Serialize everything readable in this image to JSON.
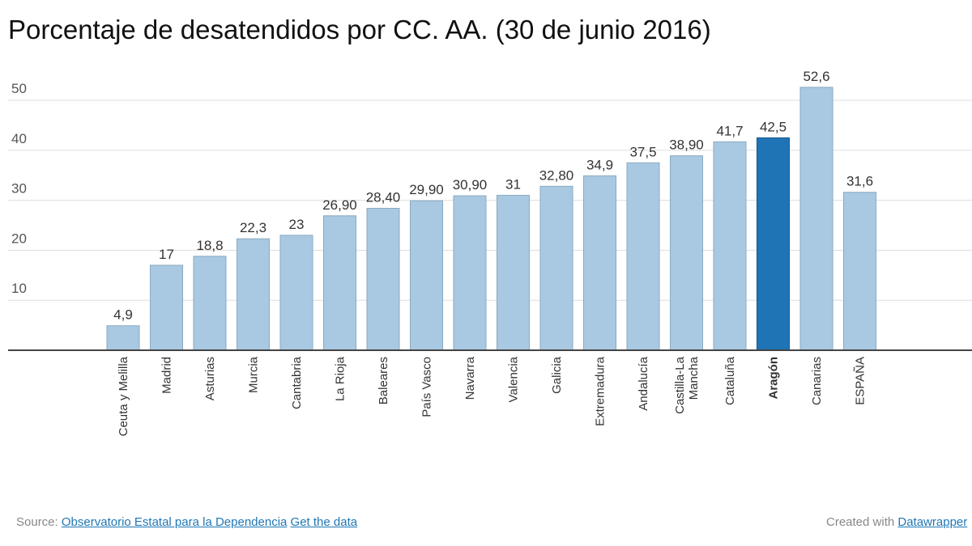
{
  "chart_data": {
    "type": "bar",
    "title": "Porcentaje de desatendidos por CC. AA. (30 de junio 2016)",
    "xlabel": "",
    "ylabel": "",
    "ylim": [
      0,
      50
    ],
    "yticks": [
      10,
      20,
      30,
      40,
      50
    ],
    "grid": true,
    "categories": [
      "Ceuta y Melilla",
      "Madrid",
      "Asturias",
      "Murcia",
      "Cantabria",
      "La Rioja",
      "Baleares",
      "País Vasco",
      "Navarra",
      "Valencia",
      "Galicia",
      "Extremadura",
      "Andalucía",
      "Castilla-La Mancha",
      "Cataluña",
      "Aragón",
      "Canarias",
      "ESPAÑA"
    ],
    "values": [
      4.9,
      17,
      18.8,
      22.3,
      23,
      26.9,
      28.4,
      29.9,
      30.9,
      31,
      32.8,
      34.9,
      37.5,
      38.9,
      41.7,
      42.5,
      52.6,
      31.6
    ],
    "value_labels": [
      "4,9",
      "17",
      "18,8",
      "22,3",
      "23",
      "26,90",
      "28,40",
      "29,90",
      "30,90",
      "31",
      "32,80",
      "34,9",
      "37,5",
      "38,90",
      "41,7",
      "42,5",
      "52,6",
      "31,6"
    ],
    "highlight": "Aragón",
    "colors": {
      "default": "#a9c9e2",
      "highlight": "#1f74b5",
      "default_stroke": "#8aa9bf",
      "highlight_stroke": "#155a8e"
    }
  },
  "footer": {
    "source_prefix": "Source:",
    "source_link": "Observatorio Estatal para la Dependencia",
    "get_data_link": "Get the data",
    "created_prefix": "Created with",
    "created_link": "Datawrapper"
  }
}
